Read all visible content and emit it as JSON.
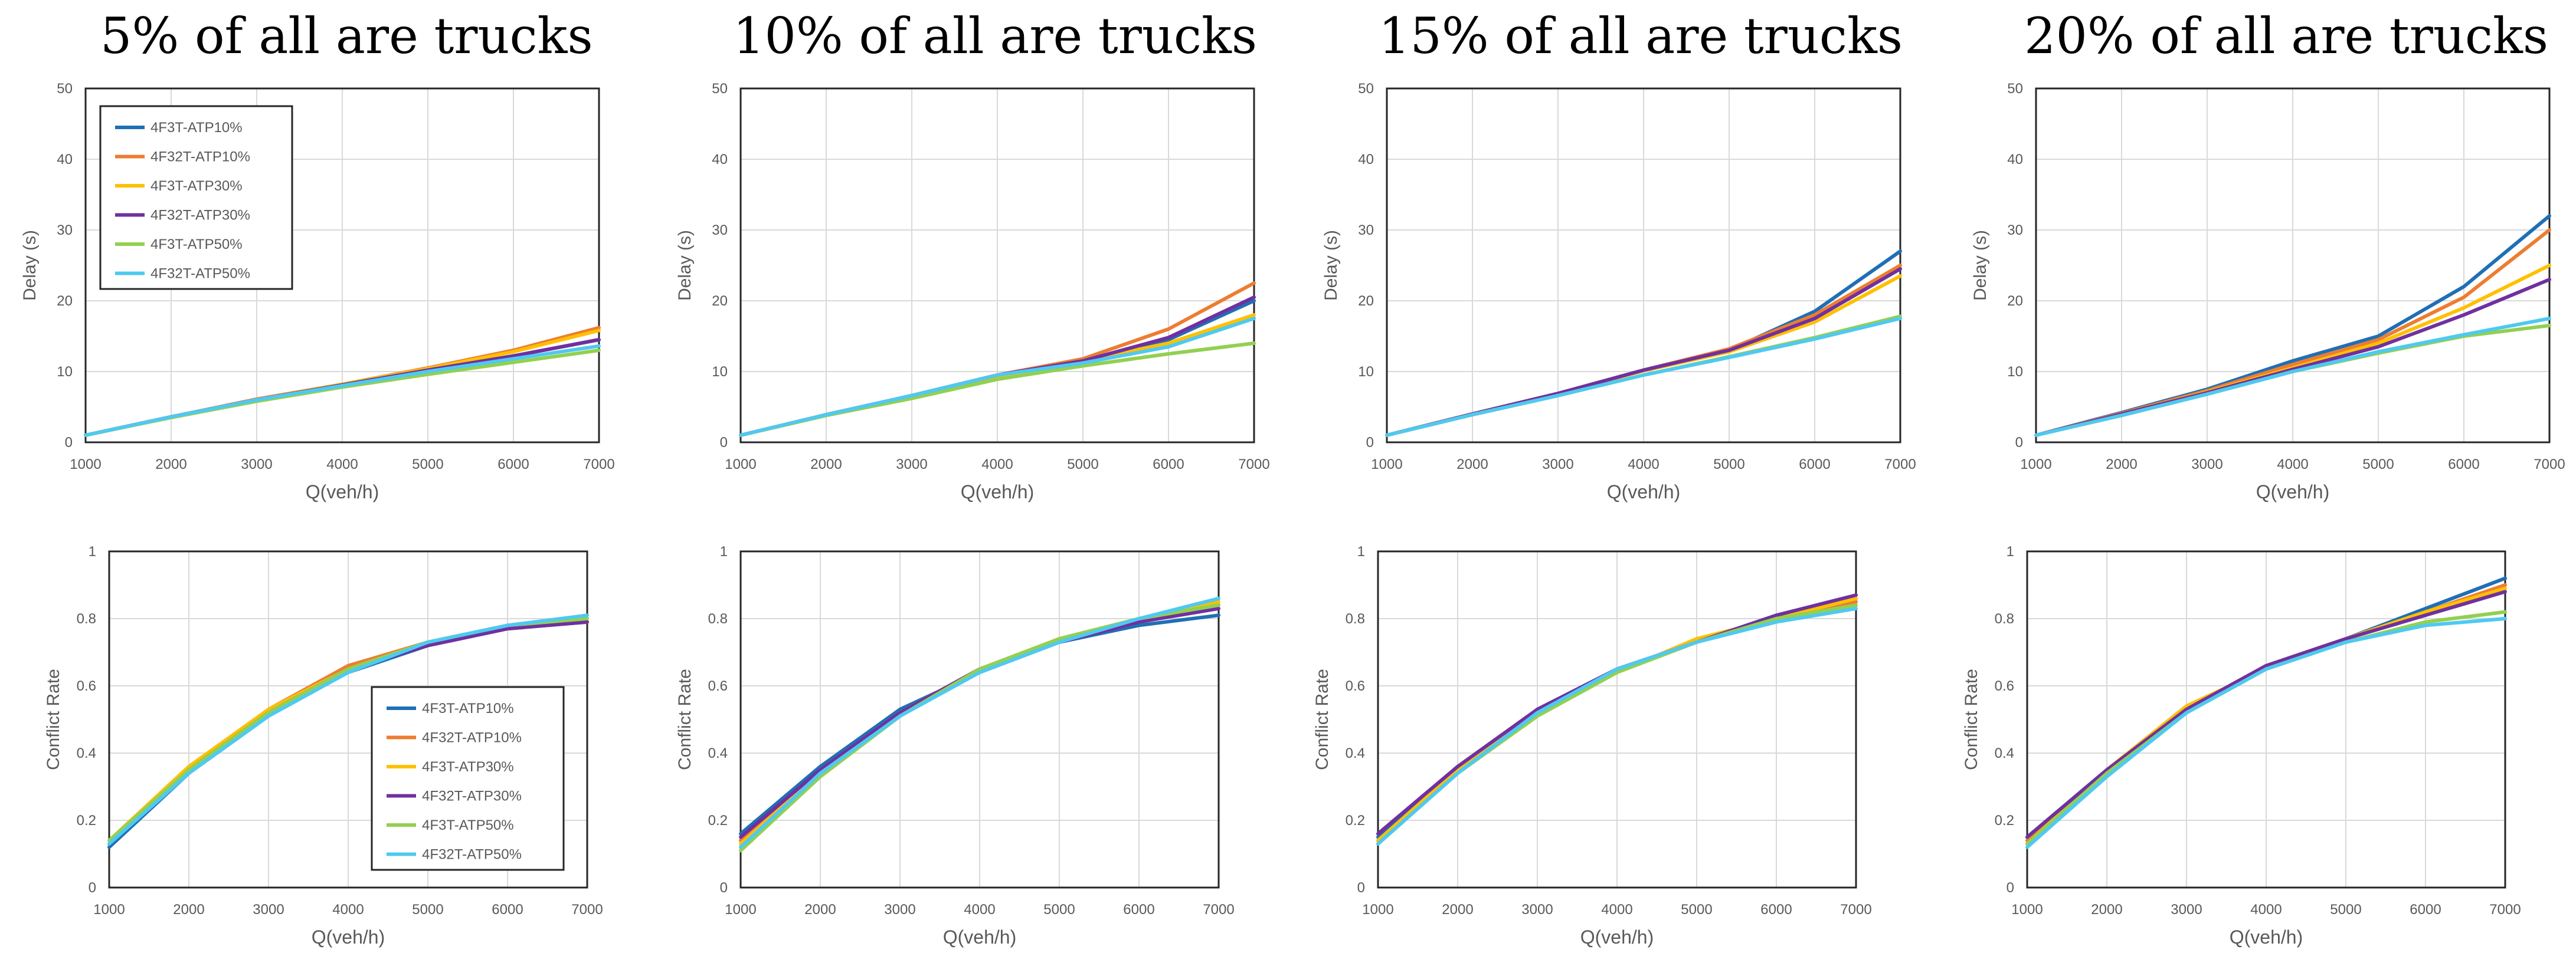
{
  "figure": {
    "column_titles": [
      "5% of all are trucks",
      "10% of all are trucks",
      "15% of all are trucks",
      "20% of all are trucks"
    ]
  },
  "colors": {
    "4F3T-ATP10%": "#1F6FB5",
    "4F32T-ATP10%": "#ED7D31",
    "4F3T-ATP30%": "#FFC000",
    "4F32T-ATP30%": "#7030A0",
    "4F3T-ATP50%": "#92D050",
    "4F32T-ATP50%": "#4FC9F0"
  },
  "chart_data": [
    {
      "type": "line",
      "title": "5% of all are trucks",
      "xlabel": "Q(veh/h)",
      "ylabel": "Delay (s)",
      "x": [
        1000,
        2000,
        3000,
        4000,
        5000,
        6000,
        7000
      ],
      "xlim": [
        1000,
        7000
      ],
      "ylim": [
        0,
        50
      ],
      "yticks": [
        0,
        10,
        20,
        30,
        40,
        50
      ],
      "grid": true,
      "legend": "top-left",
      "series": [
        {
          "name": "4F3T-ATP10%",
          "values": [
            1,
            3.6,
            6,
            8.1,
            10.2,
            12.2,
            14.5
          ]
        },
        {
          "name": "4F32T-ATP10%",
          "values": [
            1,
            3.6,
            6.1,
            8.2,
            10.5,
            13,
            16.2
          ]
        },
        {
          "name": "4F3T-ATP30%",
          "values": [
            1,
            3.6,
            6,
            8.2,
            10.4,
            12.8,
            15.8
          ]
        },
        {
          "name": "4F32T-ATP30%",
          "values": [
            1,
            3.6,
            6,
            8.1,
            10.2,
            12.2,
            14.5
          ]
        },
        {
          "name": "4F3T-ATP50%",
          "values": [
            1,
            3.5,
            5.8,
            7.8,
            9.6,
            11.3,
            13
          ]
        },
        {
          "name": "4F32T-ATP50%",
          "values": [
            1,
            3.6,
            6,
            8,
            10,
            11.8,
            13.6
          ]
        }
      ]
    },
    {
      "type": "line",
      "title": "10% of all are trucks",
      "xlabel": "Q(veh/h)",
      "ylabel": "Delay (s)",
      "x": [
        1000,
        2000,
        3000,
        4000,
        5000,
        6000,
        7000
      ],
      "xlim": [
        1000,
        7000
      ],
      "ylim": [
        0,
        50
      ],
      "yticks": [
        0,
        10,
        20,
        30,
        40,
        50
      ],
      "grid": true,
      "series": [
        {
          "name": "4F3T-ATP10%",
          "values": [
            1,
            3.9,
            6.6,
            9.5,
            11.5,
            14.5,
            20
          ]
        },
        {
          "name": "4F32T-ATP10%",
          "values": [
            1,
            3.9,
            6.6,
            9.5,
            11.8,
            16,
            22.5
          ]
        },
        {
          "name": "4F3T-ATP30%",
          "values": [
            1,
            3.8,
            6.3,
            9.2,
            11.5,
            14,
            18
          ]
        },
        {
          "name": "4F32T-ATP30%",
          "values": [
            1,
            3.9,
            6.6,
            9.5,
            11.5,
            14.8,
            20.5
          ]
        },
        {
          "name": "4F3T-ATP50%",
          "values": [
            1,
            3.8,
            6.2,
            8.9,
            10.8,
            12.5,
            14
          ]
        },
        {
          "name": "4F32T-ATP50%",
          "values": [
            1,
            3.9,
            6.6,
            9.5,
            11.2,
            13.5,
            17.5
          ]
        }
      ]
    },
    {
      "type": "line",
      "title": "15% of all are trucks",
      "xlabel": "Q(veh/h)",
      "ylabel": "Delay (s)",
      "x": [
        1000,
        2000,
        3000,
        4000,
        5000,
        6000,
        7000
      ],
      "xlim": [
        1000,
        7000
      ],
      "ylim": [
        0,
        50
      ],
      "yticks": [
        0,
        10,
        20,
        30,
        40,
        50
      ],
      "grid": true,
      "series": [
        {
          "name": "4F3T-ATP10%",
          "values": [
            1,
            4,
            6.9,
            10.2,
            13,
            18.5,
            27
          ]
        },
        {
          "name": "4F32T-ATP10%",
          "values": [
            1,
            4,
            6.9,
            10.2,
            13.2,
            18,
            25
          ]
        },
        {
          "name": "4F3T-ATP30%",
          "values": [
            1,
            4,
            6.9,
            10.1,
            12.8,
            17,
            23.5
          ]
        },
        {
          "name": "4F32T-ATP30%",
          "values": [
            1,
            4,
            6.9,
            10.2,
            13,
            17.5,
            24.5
          ]
        },
        {
          "name": "4F3T-ATP50%",
          "values": [
            1,
            3.9,
            6.6,
            9.5,
            12.1,
            14.8,
            17.8
          ]
        },
        {
          "name": "4F32T-ATP50%",
          "values": [
            1,
            3.9,
            6.6,
            9.5,
            12,
            14.6,
            17.5
          ]
        }
      ]
    },
    {
      "type": "line",
      "title": "20% of all are trucks",
      "xlabel": "Q(veh/h)",
      "ylabel": "Delay (s)",
      "x": [
        1000,
        2000,
        3000,
        4000,
        5000,
        6000,
        7000
      ],
      "xlim": [
        1000,
        7000
      ],
      "ylim": [
        0,
        50
      ],
      "yticks": [
        0,
        10,
        20,
        30,
        40,
        50
      ],
      "grid": true,
      "series": [
        {
          "name": "4F3T-ATP10%",
          "values": [
            1,
            4.2,
            7.5,
            11.5,
            15,
            22,
            32
          ]
        },
        {
          "name": "4F32T-ATP10%",
          "values": [
            1,
            4.1,
            7.3,
            11,
            14.5,
            20.5,
            30
          ]
        },
        {
          "name": "4F3T-ATP30%",
          "values": [
            1,
            4,
            7.1,
            10.5,
            14,
            19,
            25
          ]
        },
        {
          "name": "4F32T-ATP30%",
          "values": [
            1,
            4,
            7,
            10.3,
            13.5,
            18,
            23
          ]
        },
        {
          "name": "4F3T-ATP50%",
          "values": [
            1,
            3.8,
            6.8,
            10,
            12.6,
            15,
            16.5
          ]
        },
        {
          "name": "4F32T-ATP50%",
          "values": [
            1,
            3.8,
            6.8,
            10,
            12.8,
            15.2,
            17.5
          ]
        }
      ]
    },
    {
      "type": "line",
      "title": "5% of all are trucks",
      "xlabel": "Q(veh/h)",
      "ylabel": "Conflict Rate",
      "x": [
        1000,
        2000,
        3000,
        4000,
        5000,
        6000,
        7000
      ],
      "xlim": [
        1000,
        7000
      ],
      "ylim": [
        0,
        1
      ],
      "yticks": [
        0,
        0.2,
        0.4,
        0.6,
        0.8,
        1
      ],
      "grid": true,
      "legend": "bottom-right",
      "series": [
        {
          "name": "4F3T-ATP10%",
          "values": [
            0.12,
            0.34,
            0.52,
            0.64,
            0.72,
            0.77,
            0.79
          ]
        },
        {
          "name": "4F32T-ATP10%",
          "values": [
            0.13,
            0.35,
            0.53,
            0.66,
            0.73,
            0.77,
            0.79
          ]
        },
        {
          "name": "4F3T-ATP30%",
          "values": [
            0.14,
            0.36,
            0.53,
            0.65,
            0.73,
            0.77,
            0.8
          ]
        },
        {
          "name": "4F32T-ATP30%",
          "values": [
            0.13,
            0.35,
            0.52,
            0.65,
            0.72,
            0.77,
            0.79
          ]
        },
        {
          "name": "4F3T-ATP50%",
          "values": [
            0.14,
            0.35,
            0.52,
            0.65,
            0.73,
            0.78,
            0.8
          ]
        },
        {
          "name": "4F32T-ATP50%",
          "values": [
            0.13,
            0.34,
            0.51,
            0.64,
            0.73,
            0.78,
            0.81
          ]
        }
      ]
    },
    {
      "type": "line",
      "title": "10% of all are trucks",
      "xlabel": "Q(veh/h)",
      "ylabel": "Conflict Rate",
      "x": [
        1000,
        2000,
        3000,
        4000,
        5000,
        6000,
        7000
      ],
      "xlim": [
        1000,
        7000
      ],
      "ylim": [
        0,
        1
      ],
      "yticks": [
        0,
        0.2,
        0.4,
        0.6,
        0.8,
        1
      ],
      "grid": true,
      "series": [
        {
          "name": "4F3T-ATP10%",
          "values": [
            0.16,
            0.36,
            0.53,
            0.64,
            0.73,
            0.78,
            0.81
          ]
        },
        {
          "name": "4F32T-ATP10%",
          "values": [
            0.14,
            0.35,
            0.52,
            0.65,
            0.74,
            0.79,
            0.84
          ]
        },
        {
          "name": "4F3T-ATP30%",
          "values": [
            0.13,
            0.34,
            0.52,
            0.65,
            0.74,
            0.8,
            0.85
          ]
        },
        {
          "name": "4F32T-ATP30%",
          "values": [
            0.15,
            0.35,
            0.52,
            0.65,
            0.73,
            0.79,
            0.83
          ]
        },
        {
          "name": "4F3T-ATP50%",
          "values": [
            0.11,
            0.33,
            0.51,
            0.65,
            0.74,
            0.8,
            0.84
          ]
        },
        {
          "name": "4F32T-ATP50%",
          "values": [
            0.12,
            0.34,
            0.51,
            0.64,
            0.73,
            0.8,
            0.86
          ]
        }
      ]
    },
    {
      "type": "line",
      "title": "15% of all are trucks",
      "xlabel": "Q(veh/h)",
      "ylabel": "Conflict Rate",
      "x": [
        1000,
        2000,
        3000,
        4000,
        5000,
        6000,
        7000
      ],
      "xlim": [
        1000,
        7000
      ],
      "ylim": [
        0,
        1
      ],
      "yticks": [
        0,
        0.2,
        0.4,
        0.6,
        0.8,
        1
      ],
      "grid": true,
      "series": [
        {
          "name": "4F3T-ATP10%",
          "values": [
            0.15,
            0.35,
            0.53,
            0.65,
            0.73,
            0.81,
            0.86
          ]
        },
        {
          "name": "4F32T-ATP10%",
          "values": [
            0.14,
            0.35,
            0.52,
            0.65,
            0.73,
            0.8,
            0.85
          ]
        },
        {
          "name": "4F3T-ATP30%",
          "values": [
            0.14,
            0.35,
            0.52,
            0.64,
            0.74,
            0.8,
            0.86
          ]
        },
        {
          "name": "4F32T-ATP30%",
          "values": [
            0.16,
            0.36,
            0.53,
            0.65,
            0.73,
            0.81,
            0.87
          ]
        },
        {
          "name": "4F3T-ATP50%",
          "values": [
            0.13,
            0.34,
            0.51,
            0.64,
            0.73,
            0.8,
            0.84
          ]
        },
        {
          "name": "4F32T-ATP50%",
          "values": [
            0.13,
            0.34,
            0.52,
            0.65,
            0.73,
            0.79,
            0.83
          ]
        }
      ]
    },
    {
      "type": "line",
      "title": "20% of all are trucks",
      "xlabel": "Q(veh/h)",
      "ylabel": "Conflict Rate",
      "x": [
        1000,
        2000,
        3000,
        4000,
        5000,
        6000,
        7000
      ],
      "xlim": [
        1000,
        7000
      ],
      "ylim": [
        0,
        1
      ],
      "yticks": [
        0,
        0.2,
        0.4,
        0.6,
        0.8,
        1
      ],
      "grid": true,
      "series": [
        {
          "name": "4F3T-ATP10%",
          "values": [
            0.15,
            0.35,
            0.53,
            0.66,
            0.74,
            0.83,
            0.92
          ]
        },
        {
          "name": "4F32T-ATP10%",
          "values": [
            0.14,
            0.35,
            0.53,
            0.66,
            0.74,
            0.82,
            0.9
          ]
        },
        {
          "name": "4F3T-ATP30%",
          "values": [
            0.13,
            0.35,
            0.54,
            0.65,
            0.74,
            0.82,
            0.89
          ]
        },
        {
          "name": "4F32T-ATP30%",
          "values": [
            0.15,
            0.35,
            0.53,
            0.66,
            0.74,
            0.81,
            0.88
          ]
        },
        {
          "name": "4F3T-ATP50%",
          "values": [
            0.13,
            0.34,
            0.52,
            0.65,
            0.73,
            0.79,
            0.82
          ]
        },
        {
          "name": "4F32T-ATP50%",
          "values": [
            0.12,
            0.33,
            0.52,
            0.65,
            0.73,
            0.78,
            0.8
          ]
        }
      ]
    }
  ]
}
